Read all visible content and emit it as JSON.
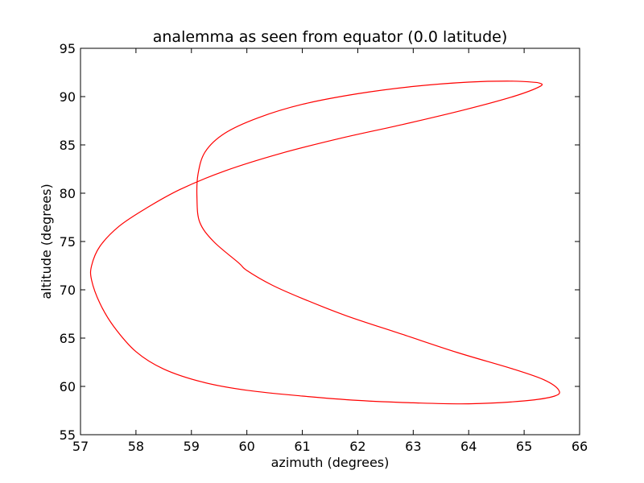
{
  "chart_data": {
    "type": "line",
    "title": "analemma as seen from equator (0.0 latitude)",
    "xlabel": "azimuth (degrees)",
    "ylabel": "altitude (degrees)",
    "xlim": [
      57,
      66
    ],
    "ylim": [
      55,
      95
    ],
    "xticks": [
      57,
      58,
      59,
      60,
      61,
      62,
      63,
      64,
      65,
      66
    ],
    "yticks": [
      55,
      60,
      65,
      70,
      75,
      80,
      85,
      90,
      95
    ],
    "grid": false,
    "series": [
      {
        "color": "#ff0000",
        "points": [
          [
            65.25,
            91.45
          ],
          [
            64.8,
            91.6
          ],
          [
            64.0,
            91.5
          ],
          [
            63.0,
            91.05
          ],
          [
            62.0,
            90.3
          ],
          [
            61.0,
            89.2
          ],
          [
            60.2,
            87.8
          ],
          [
            59.6,
            86.2
          ],
          [
            59.25,
            84.3
          ],
          [
            59.12,
            82.0
          ],
          [
            59.1,
            79.5
          ],
          [
            59.15,
            77.0
          ],
          [
            59.4,
            75.0
          ],
          [
            59.85,
            72.8
          ],
          [
            60.0,
            72.0
          ],
          [
            60.45,
            70.5
          ],
          [
            61.0,
            69.1
          ],
          [
            61.8,
            67.3
          ],
          [
            62.8,
            65.4
          ],
          [
            63.8,
            63.5
          ],
          [
            64.8,
            61.8
          ],
          [
            65.35,
            60.7
          ],
          [
            65.62,
            59.65
          ],
          [
            65.55,
            59.0
          ],
          [
            65.0,
            58.5
          ],
          [
            64.0,
            58.2
          ],
          [
            63.0,
            58.3
          ],
          [
            62.0,
            58.55
          ],
          [
            61.0,
            59.0
          ],
          [
            60.0,
            59.6
          ],
          [
            59.2,
            60.45
          ],
          [
            58.5,
            61.8
          ],
          [
            58.0,
            63.6
          ],
          [
            57.6,
            66.2
          ],
          [
            57.35,
            68.6
          ],
          [
            57.2,
            71.0
          ],
          [
            57.2,
            72.5
          ],
          [
            57.35,
            74.5
          ],
          [
            57.7,
            76.6
          ],
          [
            58.2,
            78.5
          ],
          [
            58.8,
            80.4
          ],
          [
            59.6,
            82.3
          ],
          [
            60.6,
            84.1
          ],
          [
            61.7,
            85.7
          ],
          [
            62.8,
            87.1
          ],
          [
            63.9,
            88.6
          ],
          [
            64.8,
            90.0
          ],
          [
            65.3,
            91.1
          ],
          [
            65.25,
            91.45
          ]
        ]
      }
    ]
  }
}
